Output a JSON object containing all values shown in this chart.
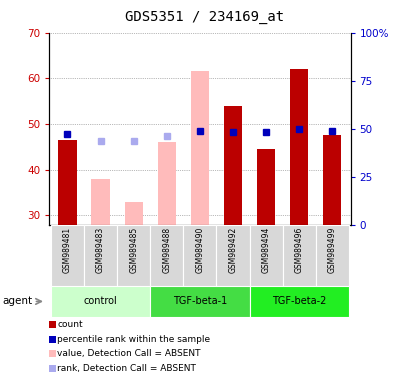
{
  "title": "GDS5351 / 234169_at",
  "samples": [
    "GSM989481",
    "GSM989483",
    "GSM989485",
    "GSM989488",
    "GSM989490",
    "GSM989492",
    "GSM989494",
    "GSM989496",
    "GSM989499"
  ],
  "groups": [
    {
      "name": "control",
      "indices": [
        0,
        1,
        2
      ],
      "color": "#ccffcc"
    },
    {
      "name": "TGF-beta-1",
      "indices": [
        3,
        4,
        5
      ],
      "color": "#44dd44"
    },
    {
      "name": "TGF-beta-2",
      "indices": [
        6,
        7,
        8
      ],
      "color": "#22ee22"
    }
  ],
  "count_values": [
    46.5,
    null,
    null,
    null,
    null,
    54.0,
    44.5,
    62.0,
    47.5
  ],
  "count_absent_values": [
    null,
    38.0,
    33.0,
    46.0,
    61.5,
    null,
    null,
    null,
    null
  ],
  "rank_values": [
    47.0,
    null,
    null,
    null,
    49.0,
    48.0,
    48.0,
    50.0,
    49.0
  ],
  "rank_absent_values": [
    null,
    43.5,
    43.5,
    46.0,
    null,
    null,
    null,
    null,
    null
  ],
  "ylim_left": [
    28,
    70
  ],
  "ylim_right": [
    0,
    100
  ],
  "yticks_left": [
    30,
    40,
    50,
    60,
    70
  ],
  "yticks_right": [
    0,
    25,
    50,
    75,
    100
  ],
  "ytick_labels_right": [
    "0",
    "25",
    "50",
    "75",
    "100%"
  ],
  "bar_width": 0.55,
  "count_color": "#bb0000",
  "count_absent_color": "#ffbbbb",
  "rank_color": "#0000bb",
  "rank_absent_color": "#aaaaee",
  "bg_color": "#ffffff",
  "plot_bg": "#ffffff",
  "grid_color": "#777777",
  "left_tick_color": "#cc0000",
  "right_tick_color": "#0000cc",
  "legend_items": [
    {
      "label": "count",
      "color": "#bb0000"
    },
    {
      "label": "percentile rank within the sample",
      "color": "#0000bb"
    },
    {
      "label": "value, Detection Call = ABSENT",
      "color": "#ffbbbb"
    },
    {
      "label": "rank, Detection Call = ABSENT",
      "color": "#aaaaee"
    }
  ]
}
